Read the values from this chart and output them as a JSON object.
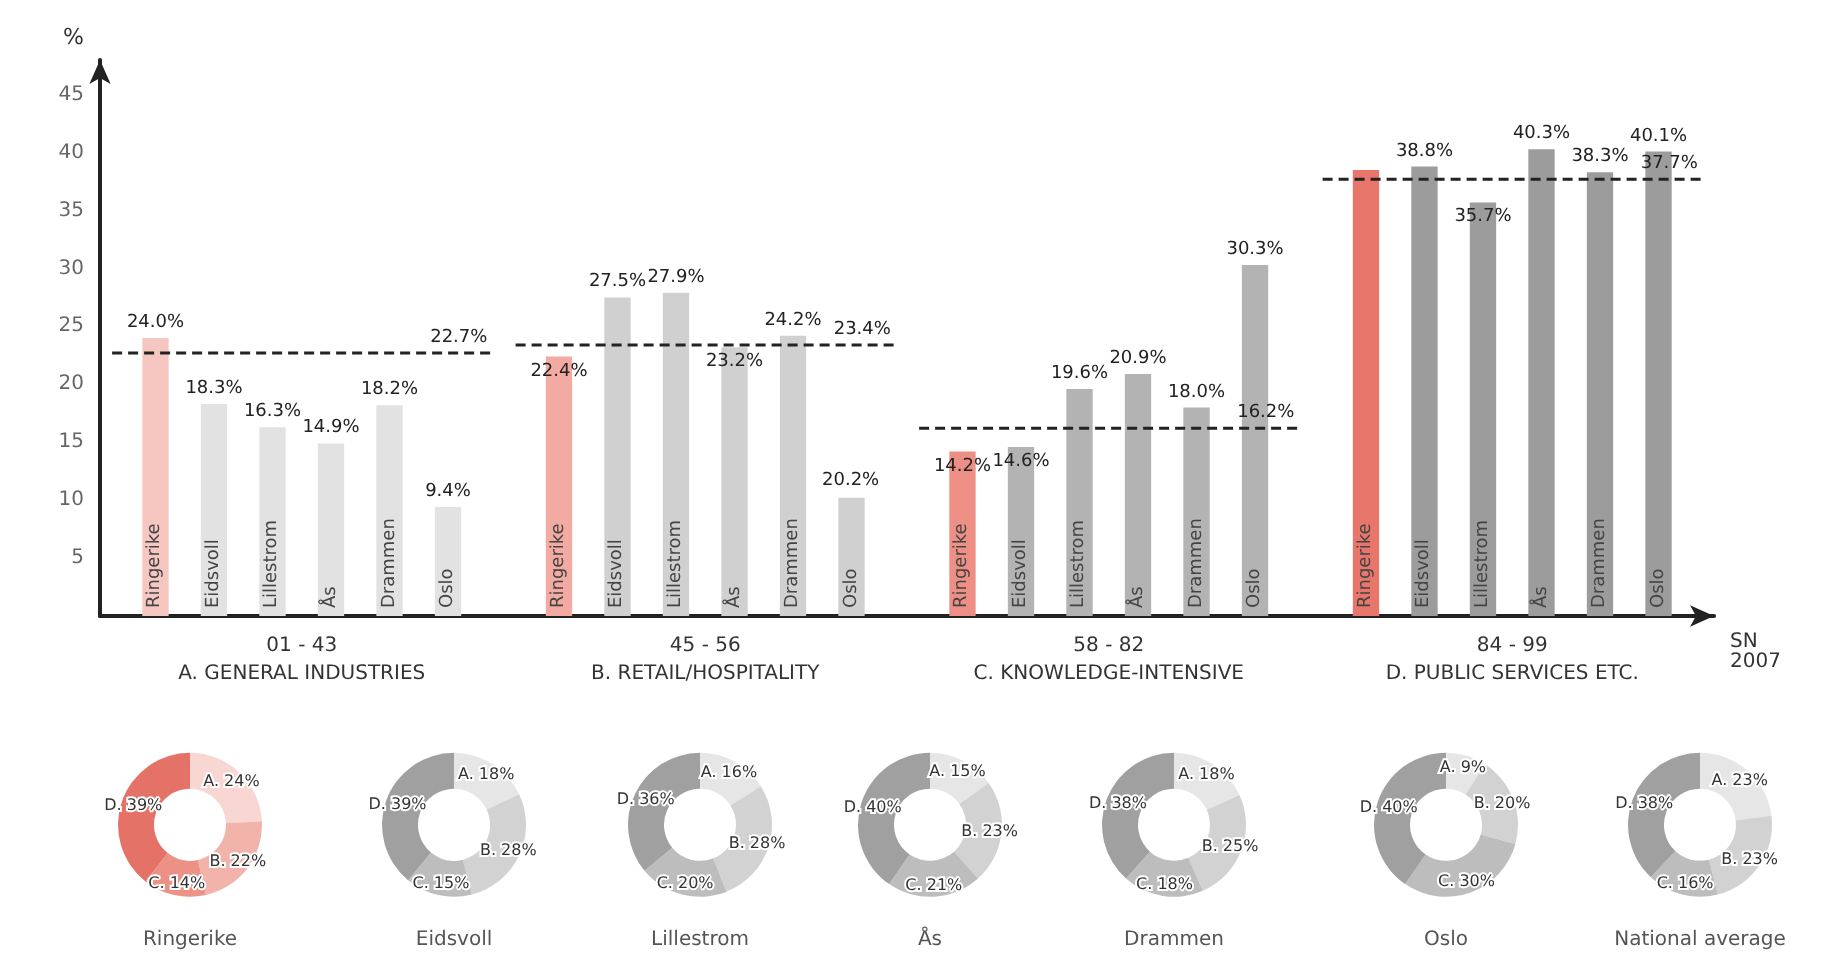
{
  "chart_data": [
    {
      "type": "bar",
      "categories": [
        "01 - 43\nA. GENERAL INDUSTRIES",
        "45 - 56\nB. RETAIL/HOSPITALITY",
        "58 - 82\nC. KNOWLEDGE-INTENSIVE",
        "84 - 99\nD. PUBLIC SERVICES ETC."
      ],
      "ylabel": "%",
      "xlabel": "SN\n2007",
      "ylim": [
        0,
        48
      ],
      "yticks": [
        5,
        10,
        15,
        20,
        25,
        30,
        35,
        40,
        45
      ],
      "grid": false,
      "legend": false,
      "series": [
        {
          "name": "Ringerike",
          "colors": [
            "#f6c6c0",
            "#f3aaa2",
            "#ee8f85",
            "#e8766b"
          ],
          "values": [
            24.0,
            22.4,
            14.2,
            38.5
          ],
          "value_labels": [
            "24.0%",
            "22.4%",
            "14.2%",
            null
          ]
        },
        {
          "name": "Eidsvoll",
          "colors": [
            "#e2e2e2",
            "#d0d0d0",
            "#b3b3b3",
            "#9c9c9c"
          ],
          "values": [
            18.3,
            27.5,
            14.6,
            38.8
          ],
          "value_labels": [
            "18.3%",
            "27.5%",
            "14.6%",
            "38.8%"
          ]
        },
        {
          "name": "Lillestrom",
          "colors": [
            "#e2e2e2",
            "#d0d0d0",
            "#b3b3b3",
            "#9c9c9c"
          ],
          "values": [
            16.3,
            27.9,
            19.6,
            35.7
          ],
          "value_labels": [
            "16.3%",
            "27.9%",
            "19.6%",
            "35.7%"
          ]
        },
        {
          "name": "Ås",
          "colors": [
            "#e2e2e2",
            "#d0d0d0",
            "#b3b3b3",
            "#9c9c9c"
          ],
          "values": [
            14.9,
            23.2,
            20.9,
            40.3
          ],
          "value_labels": [
            "14.9%",
            "23.2%",
            "20.9%",
            "40.3%"
          ]
        },
        {
          "name": "Drammen",
          "colors": [
            "#e2e2e2",
            "#d0d0d0",
            "#b3b3b3",
            "#9c9c9c"
          ],
          "values": [
            18.2,
            24.2,
            18.0,
            38.3
          ],
          "value_labels": [
            "18.2%",
            "24.2%",
            "18.0%",
            "38.3%"
          ]
        },
        {
          "name": "Oslo",
          "colors": [
            "#e2e2e2",
            "#d0d0d0",
            "#b3b3b3",
            "#9c9c9c"
          ],
          "values": [
            9.4,
            10.2,
            30.3,
            40.1
          ],
          "value_labels": [
            "9.4%",
            null,
            "30.3%",
            "40.1%"
          ]
        }
      ],
      "annotations": [
        "20.2%"
      ],
      "ref_lines": [
        {
          "axis": "y",
          "value": 22.7,
          "label": "22.7%",
          "line_style": "dashed",
          "color": "#222222"
        },
        {
          "axis": "y",
          "value": 23.4,
          "label": "23.4%",
          "line_style": "dashed",
          "color": "#222222"
        },
        {
          "axis": "y",
          "value": 16.2,
          "label": "16.2%",
          "line_style": "dashed",
          "color": "#222222"
        },
        {
          "axis": "y",
          "value": 37.7,
          "label": "37.7%",
          "line_style": "dashed",
          "color": "#222222"
        }
      ]
    },
    {
      "type": "donut",
      "title": "Ringerike",
      "categories": [
        "A.",
        "B.",
        "C.",
        "D."
      ],
      "values": [
        24,
        22,
        14,
        39
      ],
      "value_labels": [
        "24%",
        "22%",
        "14%",
        "39%"
      ],
      "colors": [
        "#f8d6d2",
        "#f2b3ab",
        "#ec9186",
        "#e57266"
      ]
    },
    {
      "type": "donut",
      "title": "Eidsvoll",
      "categories": [
        "A.",
        "B.",
        "C.",
        "D."
      ],
      "values": [
        18,
        28,
        15,
        39
      ],
      "value_labels": [
        "18%",
        "28%",
        "15%",
        "39%"
      ],
      "colors": [
        "#e6e6e6",
        "#d2d2d2",
        "#bdbdbd",
        "#a0a0a0"
      ]
    },
    {
      "type": "donut",
      "title": "Lillestrom",
      "categories": [
        "A.",
        "B.",
        "C.",
        "D."
      ],
      "values": [
        16,
        28,
        20,
        36
      ],
      "value_labels": [
        "16%",
        "28%",
        "20%",
        "36%"
      ],
      "colors": [
        "#e6e6e6",
        "#d2d2d2",
        "#bdbdbd",
        "#a0a0a0"
      ]
    },
    {
      "type": "donut",
      "title": "Ås",
      "categories": [
        "A.",
        "B.",
        "C.",
        "D."
      ],
      "values": [
        15,
        23,
        21,
        40
      ],
      "value_labels": [
        "15%",
        "23%",
        "21%",
        "40%"
      ],
      "colors": [
        "#e6e6e6",
        "#d2d2d2",
        "#bdbdbd",
        "#a0a0a0"
      ]
    },
    {
      "type": "donut",
      "title": "Drammen",
      "categories": [
        "A.",
        "B.",
        "C.",
        "D."
      ],
      "values": [
        18,
        25,
        18,
        38
      ],
      "value_labels": [
        "18%",
        "25%",
        "18%",
        "38%"
      ],
      "colors": [
        "#e6e6e6",
        "#d2d2d2",
        "#bdbdbd",
        "#a0a0a0"
      ]
    },
    {
      "type": "donut",
      "title": "Oslo",
      "categories": [
        "A.",
        "B.",
        "C.",
        "D."
      ],
      "values": [
        9,
        20,
        30,
        40
      ],
      "value_labels": [
        "9%",
        "20%",
        "30%",
        "40%"
      ],
      "colors": [
        "#e6e6e6",
        "#d2d2d2",
        "#bdbdbd",
        "#a0a0a0"
      ]
    },
    {
      "type": "donut",
      "title": "National average",
      "categories": [
        "A.",
        "B.",
        "C.",
        "D."
      ],
      "values": [
        23,
        23,
        16,
        38
      ],
      "value_labels": [
        "23%",
        "23%",
        "16%",
        "38%"
      ],
      "colors": [
        "#e6e6e6",
        "#d2d2d2",
        "#bdbdbd",
        "#a0a0a0"
      ]
    }
  ]
}
